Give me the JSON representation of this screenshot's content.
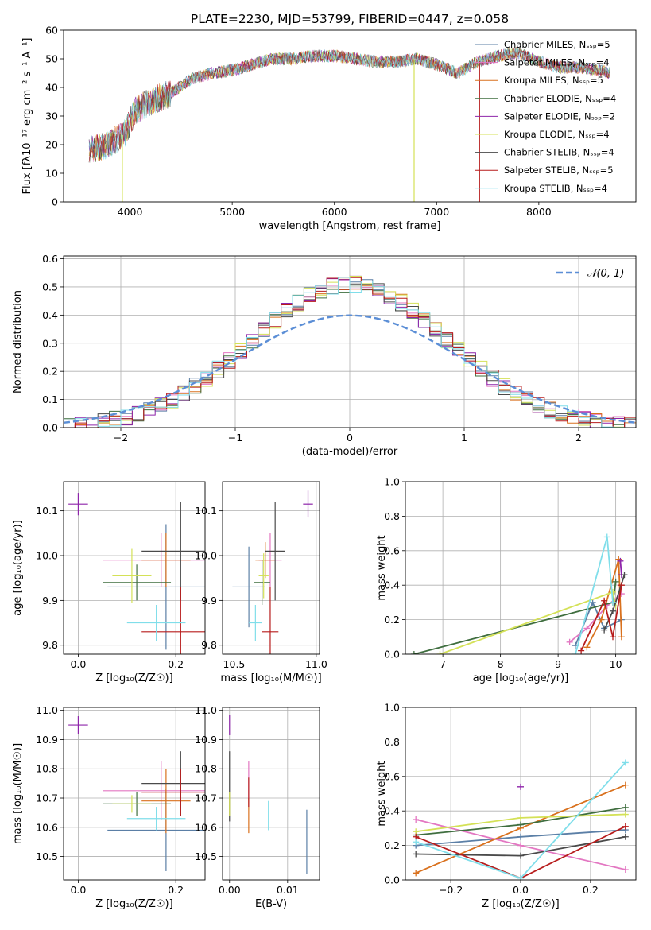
{
  "figure": {
    "title": "PLATE=2230, MJD=53799, FIBERID=0447, z=0.058"
  },
  "chart_data": [
    {
      "id": "spectrum",
      "type": "line",
      "xlabel": "wavelength [Angstrom, rest frame]",
      "ylabel": "Flux [fλ10⁻¹⁷ erg cm⁻² s⁻¹ A⁻¹]",
      "xlim": [
        3350,
        8950
      ],
      "ylim": [
        0,
        60
      ],
      "xticks": [
        4000,
        5000,
        6000,
        7000,
        8000
      ],
      "yticks": [
        0,
        10,
        20,
        30,
        40,
        50,
        60
      ],
      "grid": false,
      "legend_position": "top-right",
      "series": [
        {
          "name": "Chabrier MILES, N_SSP=5",
          "color": "#5b7fa6"
        },
        {
          "name": "Salpeter MILES, N_SSP=4",
          "color": "#e377c2"
        },
        {
          "name": "Kroupa MILES, N_SSP=5",
          "color": "#d9711e"
        },
        {
          "name": "Chabrier ELODIE, N_SSP=4",
          "color": "#3f6e3f"
        },
        {
          "name": "Salpeter ELODIE, N_SSP=2",
          "color": "#8e24aa"
        },
        {
          "name": "Kroupa ELODIE, N_SSP=4",
          "color": "#d4e157"
        },
        {
          "name": "Chabrier STELIB, N_SSP=4",
          "color": "#4a4a4a"
        },
        {
          "name": "Salpeter STELIB, N_SSP=5",
          "color": "#b71c1c"
        },
        {
          "name": "Kroupa STELIB, N_SSP=4",
          "color": "#80deea"
        }
      ],
      "continuum": {
        "x": [
          3600,
          3800,
          3950,
          4050,
          4200,
          4400,
          4600,
          4800,
          5000,
          5200,
          5400,
          5600,
          5800,
          6000,
          6200,
          6400,
          6600,
          6800,
          7000,
          7200,
          7400,
          7600,
          7800,
          8000,
          8200,
          8400,
          8600,
          8700
        ],
        "y": [
          18,
          20,
          24,
          32,
          35,
          38,
          43,
          45,
          46,
          48,
          50,
          50,
          51,
          51,
          50,
          49,
          49,
          50,
          48,
          45,
          49,
          51,
          52,
          49,
          47,
          47,
          46,
          45
        ]
      },
      "spikes": [
        {
          "x": 3925,
          "y_low": 0,
          "color": "#d4e157"
        },
        {
          "x": 6780,
          "y_low": 0,
          "color": "#d4e157"
        },
        {
          "x": 7420,
          "y_low": 0,
          "color": "#b71c1c"
        }
      ]
    },
    {
      "id": "residuals",
      "type": "histogram",
      "xlabel": "(data-model)/error",
      "ylabel": "Normed distribution",
      "xlim": [
        -2.5,
        2.5
      ],
      "ylim": [
        0,
        0.61
      ],
      "xticks": [
        -2,
        -1,
        0,
        1,
        2
      ],
      "yticks": [
        0.0,
        0.1,
        0.2,
        0.3,
        0.4,
        0.5,
        0.6
      ],
      "grid": true,
      "legend": [
        {
          "label": "𝒩(0, 1)",
          "style": "dashed",
          "color": "#5b8ed6"
        }
      ],
      "legend_position": "top-right",
      "bin_width": 0.1,
      "series_colors": [
        "#5b7fa6",
        "#e377c2",
        "#d9711e",
        "#3f6e3f",
        "#8e24aa",
        "#d4e157",
        "#4a4a4a",
        "#b71c1c",
        "#80deea"
      ]
    },
    {
      "id": "age_vs_Z",
      "type": "errorbar",
      "xlabel": "Z [log₁₀(Z/Z☉)]",
      "ylabel": "age  [log₁₀(age/yr)]",
      "xlim": [
        -0.03,
        0.26
      ],
      "ylim": [
        9.78,
        10.165
      ],
      "xticks": [
        0.0,
        0.2
      ],
      "yticks": [
        9.8,
        9.9,
        10.0,
        10.1
      ],
      "points": [
        {
          "x": 0.0,
          "y": 10.115,
          "xerr": 0.02,
          "yerr": 0.025,
          "color": "#8e24aa"
        },
        {
          "x": 0.18,
          "y": 9.93,
          "xerr": 0.12,
          "yerr": 0.14,
          "color": "#5b7fa6"
        },
        {
          "x": 0.17,
          "y": 9.99,
          "xerr": 0.12,
          "yerr": 0.06,
          "color": "#e377c2"
        },
        {
          "x": 0.18,
          "y": 9.99,
          "xerr": 0.05,
          "yerr": 0.06,
          "color": "#d9711e"
        },
        {
          "x": 0.12,
          "y": 9.94,
          "xerr": 0.07,
          "yerr": 0.04,
          "color": "#3f6e3f"
        },
        {
          "x": 0.11,
          "y": 9.955,
          "xerr": 0.04,
          "yerr": 0.06,
          "color": "#d4e157"
        },
        {
          "x": 0.21,
          "y": 10.01,
          "xerr": 0.08,
          "yerr": 0.11,
          "color": "#4a4a4a"
        },
        {
          "x": 0.21,
          "y": 9.83,
          "xerr": 0.08,
          "yerr": 0.1,
          "color": "#b71c1c"
        },
        {
          "x": 0.16,
          "y": 9.85,
          "xerr": 0.06,
          "yerr": 0.04,
          "color": "#80deea"
        }
      ]
    },
    {
      "id": "age_vs_mass",
      "type": "errorbar",
      "xlabel": "mass [log₁₀(M/M☉)]",
      "ylabel": "",
      "xlim": [
        10.43,
        11.02
      ],
      "ylim": [
        9.78,
        10.165
      ],
      "xticks": [
        10.5,
        11.0
      ],
      "yticks": [
        9.8,
        9.9,
        10.0,
        10.1
      ],
      "points": [
        {
          "x": 10.95,
          "y": 10.115,
          "xerr": 0.03,
          "yerr": 0.03,
          "color": "#8e24aa"
        },
        {
          "x": 10.59,
          "y": 9.93,
          "xerr": 0.1,
          "yerr": 0.09,
          "color": "#5b7fa6"
        },
        {
          "x": 10.72,
          "y": 9.99,
          "xerr": 0.07,
          "yerr": 0.06,
          "color": "#e377c2"
        },
        {
          "x": 10.69,
          "y": 9.99,
          "xerr": 0.06,
          "yerr": 0.04,
          "color": "#d9711e"
        },
        {
          "x": 10.67,
          "y": 9.94,
          "xerr": 0.05,
          "yerr": 0.05,
          "color": "#3f6e3f"
        },
        {
          "x": 10.68,
          "y": 9.955,
          "xerr": 0.03,
          "yerr": 0.05,
          "color": "#d4e157"
        },
        {
          "x": 10.75,
          "y": 10.01,
          "xerr": 0.06,
          "yerr": 0.11,
          "color": "#4a4a4a"
        },
        {
          "x": 10.72,
          "y": 9.83,
          "xerr": 0.05,
          "yerr": 0.1,
          "color": "#b71c1c"
        },
        {
          "x": 10.63,
          "y": 9.85,
          "xerr": 0.04,
          "yerr": 0.04,
          "color": "#80deea"
        }
      ]
    },
    {
      "id": "massweight_vs_age",
      "type": "line",
      "xlabel": "age  [log₁₀(age/yr)]",
      "ylabel": "mass weight",
      "xlim": [
        6.35,
        10.35
      ],
      "ylim": [
        0,
        1
      ],
      "xticks": [
        7,
        8,
        9,
        10
      ],
      "yticks": [
        0.0,
        0.2,
        0.4,
        0.6,
        0.8,
        1.0
      ],
      "grid": true,
      "series": [
        {
          "name": "Chabrier MILES",
          "color": "#5b7fa6",
          "x": [
            9.3,
            9.6,
            9.8,
            10.1
          ],
          "y": [
            0.05,
            0.3,
            0.15,
            0.2
          ]
        },
        {
          "name": "Salpeter MILES",
          "color": "#e377c2",
          "x": [
            9.2,
            9.5,
            9.85,
            10.1
          ],
          "y": [
            0.07,
            0.15,
            0.28,
            0.35
          ]
        },
        {
          "name": "Kroupa MILES",
          "color": "#d9711e",
          "x": [
            9.5,
            9.75,
            10.05,
            10.1
          ],
          "y": [
            0.04,
            0.2,
            0.55,
            0.1
          ]
        },
        {
          "name": "Chabrier ELODIE",
          "color": "#3f6e3f",
          "x": [
            6.5,
            9.95,
            10.0
          ],
          "y": [
            0.0,
            0.3,
            0.42
          ]
        },
        {
          "name": "Salpeter ELODIE",
          "color": "#8e24aa",
          "x": [
            10.08,
            10.1
          ],
          "y": [
            0.54,
            0.46
          ]
        },
        {
          "name": "Kroupa ELODIE",
          "color": "#d4e157",
          "x": [
            6.95,
            9.95,
            10.0
          ],
          "y": [
            0.0,
            0.36,
            0.28
          ]
        },
        {
          "name": "Chabrier STELIB",
          "color": "#4a4a4a",
          "x": [
            9.8,
            9.95,
            10.15
          ],
          "y": [
            0.14,
            0.25,
            0.46
          ]
        },
        {
          "name": "Salpeter STELIB",
          "color": "#b71c1c",
          "x": [
            9.4,
            9.8,
            9.95,
            10.1
          ],
          "y": [
            0.02,
            0.31,
            0.1,
            0.4
          ]
        },
        {
          "name": "Kroupa STELIB",
          "color": "#80deea",
          "x": [
            9.3,
            9.85,
            9.95
          ],
          "y": [
            0.0,
            0.68,
            0.3
          ]
        }
      ]
    },
    {
      "id": "mass_vs_Z",
      "type": "errorbar",
      "xlabel": "Z [log₁₀(Z/Z☉)]",
      "ylabel": "mass [log₁₀(M/M☉)]",
      "xlim": [
        -0.03,
        0.26
      ],
      "ylim": [
        10.42,
        11.01
      ],
      "xticks": [
        0.0,
        0.2
      ],
      "yticks": [
        10.5,
        10.6,
        10.7,
        10.8,
        10.9,
        11.0
      ],
      "points": [
        {
          "x": 0.0,
          "y": 10.95,
          "xerr": 0.02,
          "yerr": 0.03,
          "color": "#8e24aa"
        },
        {
          "x": 0.18,
          "y": 10.59,
          "xerr": 0.12,
          "yerr": 0.14,
          "color": "#5b7fa6"
        },
        {
          "x": 0.17,
          "y": 10.725,
          "xerr": 0.12,
          "yerr": 0.1,
          "color": "#e377c2"
        },
        {
          "x": 0.18,
          "y": 10.69,
          "xerr": 0.05,
          "yerr": 0.11,
          "color": "#d9711e"
        },
        {
          "x": 0.12,
          "y": 10.68,
          "xerr": 0.07,
          "yerr": 0.04,
          "color": "#3f6e3f"
        },
        {
          "x": 0.11,
          "y": 10.68,
          "xerr": 0.04,
          "yerr": 0.03,
          "color": "#d4e157"
        },
        {
          "x": 0.21,
          "y": 10.75,
          "xerr": 0.08,
          "yerr": 0.11,
          "color": "#4a4a4a"
        },
        {
          "x": 0.21,
          "y": 10.72,
          "xerr": 0.08,
          "yerr": 0.08,
          "color": "#b71c1c"
        },
        {
          "x": 0.16,
          "y": 10.63,
          "xerr": 0.06,
          "yerr": 0.04,
          "color": "#80deea"
        }
      ]
    },
    {
      "id": "mass_vs_EBV",
      "type": "errorbar",
      "xlabel": "E(B-V)",
      "ylabel": "",
      "xlim": [
        -0.0012,
        0.0155
      ],
      "ylim": [
        10.42,
        11.01
      ],
      "xticks": [
        0.0,
        0.01
      ],
      "yticks": [
        10.5,
        10.6,
        10.7,
        10.8,
        10.9,
        11.0
      ],
      "points": [
        {
          "x": 0.0,
          "y": 10.95,
          "xerr": 0.0,
          "yerr": 0.035,
          "color": "#8e24aa"
        },
        {
          "x": 0.0133,
          "y": 10.55,
          "xerr": 0.0,
          "yerr": 0.11,
          "color": "#5b7fa6"
        },
        {
          "x": 0.0033,
          "y": 10.76,
          "xerr": 0.0,
          "yerr": 0.065,
          "color": "#e377c2"
        },
        {
          "x": 0.0033,
          "y": 10.64,
          "xerr": 0.0,
          "yerr": 0.06,
          "color": "#d9711e"
        },
        {
          "x": 0.0,
          "y": 10.74,
          "xerr": 0.0,
          "yerr": 0.12,
          "color": "#4a4a4a"
        },
        {
          "x": 0.0,
          "y": 10.68,
          "xerr": 0.0,
          "yerr": 0.04,
          "color": "#d4e157"
        },
        {
          "x": 0.0033,
          "y": 10.72,
          "xerr": 0.0,
          "yerr": 0.05,
          "color": "#b71c1c"
        },
        {
          "x": 0.0067,
          "y": 10.64,
          "xerr": 0.0,
          "yerr": 0.05,
          "color": "#80deea"
        }
      ]
    },
    {
      "id": "massweight_vs_Z",
      "type": "line",
      "xlabel": "Z [log₁₀(Z/Z☉)]",
      "ylabel": "mass weight",
      "xlim": [
        -0.33,
        0.33
      ],
      "ylim": [
        0,
        1
      ],
      "xticks": [
        -0.2,
        0.0,
        0.2
      ],
      "yticks": [
        0.0,
        0.2,
        0.4,
        0.6,
        0.8,
        1.0
      ],
      "grid": true,
      "series": [
        {
          "name": "Chabrier MILES",
          "color": "#5b7fa6",
          "x": [
            -0.3,
            0.0,
            0.3
          ],
          "y": [
            0.2,
            0.25,
            0.29
          ]
        },
        {
          "name": "Salpeter MILES",
          "color": "#e377c2",
          "x": [
            -0.3,
            0.0,
            0.3
          ],
          "y": [
            0.35,
            0.2,
            0.06
          ]
        },
        {
          "name": "Kroupa MILES",
          "color": "#d9711e",
          "x": [
            -0.3,
            0.0,
            0.3
          ],
          "y": [
            0.04,
            0.3,
            0.55
          ]
        },
        {
          "name": "Chabrier ELODIE",
          "color": "#3f6e3f",
          "x": [
            -0.3,
            0.0,
            0.3
          ],
          "y": [
            0.26,
            0.32,
            0.42
          ]
        },
        {
          "name": "Salpeter ELODIE",
          "color": "#8e24aa",
          "x": [
            0.0
          ],
          "y": [
            0.54
          ]
        },
        {
          "name": "Kroupa ELODIE",
          "color": "#d4e157",
          "x": [
            -0.3,
            0.0,
            0.3
          ],
          "y": [
            0.28,
            0.36,
            0.38
          ]
        },
        {
          "name": "Chabrier STELIB",
          "color": "#4a4a4a",
          "x": [
            -0.3,
            0.0,
            0.3
          ],
          "y": [
            0.15,
            0.14,
            0.25
          ]
        },
        {
          "name": "Salpeter STELIB",
          "color": "#b71c1c",
          "x": [
            -0.3,
            0.0,
            0.3
          ],
          "y": [
            0.25,
            0.01,
            0.31
          ]
        },
        {
          "name": "Kroupa STELIB",
          "color": "#80deea",
          "x": [
            -0.3,
            0.0,
            0.3
          ],
          "y": [
            0.22,
            0.01,
            0.68
          ]
        }
      ]
    }
  ]
}
